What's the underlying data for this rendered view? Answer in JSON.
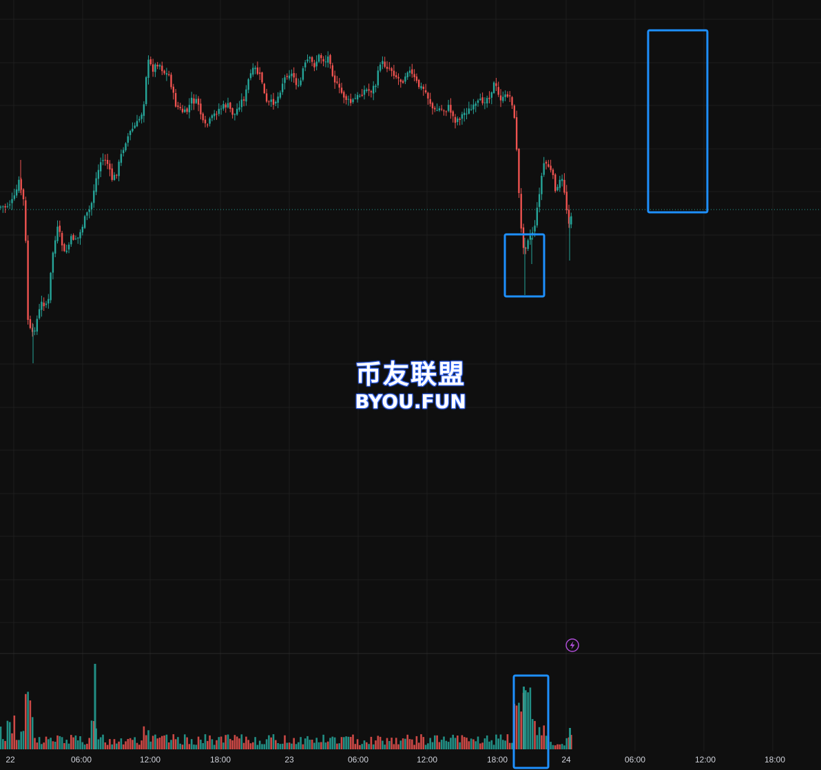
{
  "chart_data": {
    "type": "candlestick",
    "x_tick_labels": [
      "22",
      "06:00",
      "12:00",
      "18:00",
      "23",
      "06:00",
      "12:00",
      "18:00",
      "24",
      "06:00",
      "12:00",
      "18:00"
    ],
    "up_color": "#26a69a",
    "down_color": "#ef5350",
    "highlight_color": "#1e90ff",
    "grid": true,
    "note": "values estimated"
  },
  "watermark": {
    "line1": "币友联盟",
    "line2": "BYOU.FUN"
  },
  "icons": {
    "marker": "lightning-icon"
  }
}
